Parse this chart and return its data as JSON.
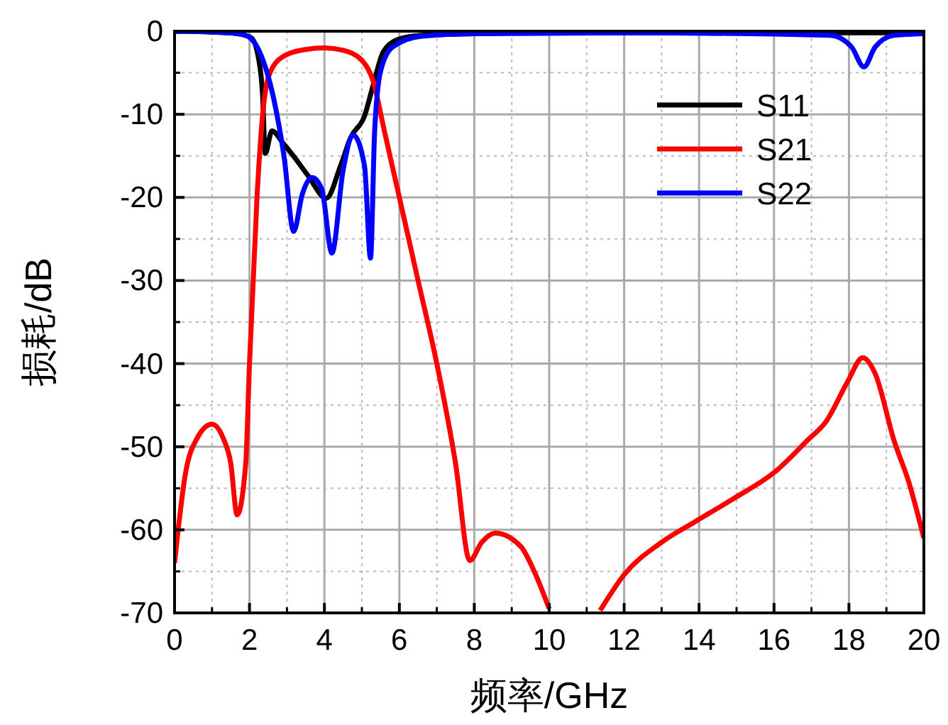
{
  "chart_data": {
    "type": "line",
    "xlabel": "频率/GHz",
    "ylabel": "损耗/dB",
    "xlim": [
      0,
      20
    ],
    "xticks": [
      0,
      2,
      4,
      6,
      8,
      10,
      12,
      14,
      16,
      18,
      20
    ],
    "ylim": [
      -70,
      0
    ],
    "yticks": [
      0,
      -10,
      -20,
      -30,
      -40,
      -50,
      -60,
      -70
    ],
    "grid": true,
    "legend": "top right",
    "line_style": "solid",
    "series": [
      {
        "name": "S11",
        "color": "#000000",
        "x": [
          0,
          1,
          1.5,
          1.8,
          2.05,
          2.23,
          2.35,
          2.42,
          2.6,
          2.9,
          3.17,
          3.55,
          4.05,
          4.43,
          4.7,
          5.07,
          5.3,
          5.57,
          5.95,
          6.6,
          8,
          10,
          14,
          18,
          20
        ],
        "values": [
          0,
          -0.1,
          -0.2,
          -0.4,
          -0.8,
          -3,
          -7.7,
          -14.7,
          -12,
          -13.5,
          -15,
          -17.3,
          -20.1,
          -16.2,
          -12.8,
          -10.2,
          -6.5,
          -2.5,
          -1,
          -0.5,
          -0.3,
          -0.2,
          -0.2,
          -0.2,
          -0.2
        ]
      },
      {
        "name": "S21",
        "color": "#ff0000",
        "x": [
          0,
          0.3,
          0.6,
          1,
          1.3,
          1.5,
          1.67,
          1.9,
          2,
          2.2,
          2.4,
          2.6,
          3,
          3.5,
          4,
          4.5,
          5,
          5.3,
          5.6,
          6,
          6.5,
          7,
          7.5,
          7.88,
          8.2,
          8.56,
          9.24,
          9.6,
          10,
          10.3,
          11.2,
          11.36,
          12,
          13,
          13.9,
          14.9,
          16.06,
          16.9,
          17.4,
          17.95,
          18.37,
          18.7,
          19.2,
          19.6,
          20
        ],
        "values": [
          -64,
          -53,
          -49,
          -47.3,
          -49,
          -52,
          -58.2,
          -52,
          -40,
          -20,
          -8,
          -4.5,
          -2.8,
          -2.2,
          -2,
          -2.3,
          -3.5,
          -6,
          -12,
          -20,
          -30,
          -40,
          -52,
          -63.7,
          -61.5,
          -60.4,
          -62,
          -65,
          -69.5,
          null,
          null,
          -69.7,
          -65.4,
          -61.5,
          -59,
          -56.3,
          -52.9,
          -49.2,
          -46.9,
          -42.3,
          -39.3,
          -41.2,
          -49.2,
          -54.3,
          -61
        ]
      },
      {
        "name": "S22",
        "color": "#0000ff",
        "x": [
          0,
          1,
          1.5,
          1.9,
          2.27,
          2.65,
          2.92,
          3.18,
          3.41,
          3.67,
          3.93,
          4.2,
          4.5,
          4.77,
          5.07,
          5.23,
          5.34,
          5.5,
          5.82,
          6.6,
          8,
          12,
          17.5,
          18.07,
          18.4,
          18.7,
          19.2,
          20
        ],
        "values": [
          0,
          -0.1,
          -0.2,
          -0.5,
          -2.5,
          -8.2,
          -15,
          -24.1,
          -19.6,
          -17.6,
          -19,
          -26.7,
          -16.7,
          -12.5,
          -16.2,
          -27.3,
          -12.1,
          -4.8,
          -1.9,
          -0.6,
          -0.3,
          -0.2,
          -0.5,
          -1.9,
          -4.3,
          -1.9,
          -0.5,
          -0.3
        ]
      }
    ]
  }
}
